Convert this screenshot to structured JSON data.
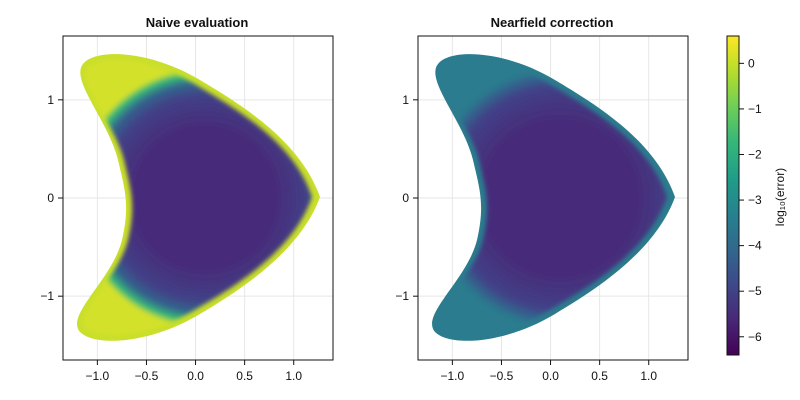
{
  "chart_data": [
    {
      "type": "heatmap",
      "title": "Naive evaluation",
      "xlim": [
        -1.35,
        1.4
      ],
      "ylim": [
        -1.65,
        1.65
      ],
      "x_ticks": [
        -1.0,
        -0.5,
        0.0,
        0.5,
        1.0
      ],
      "x_tick_labels": [
        "−1.0",
        "−0.5",
        "0.0",
        "0.5",
        "1.0"
      ],
      "y_ticks": [
        -1,
        0,
        1
      ],
      "y_tick_labels": [
        "−1",
        "0",
        "1"
      ],
      "grid": true,
      "interior_log10_error_approx": -5.8,
      "boundary_log10_error_approx": 0.2
    },
    {
      "type": "heatmap",
      "title": "Nearfield correction",
      "xlim": [
        -1.35,
        1.4
      ],
      "ylim": [
        -1.65,
        1.65
      ],
      "x_ticks": [
        -1.0,
        -0.5,
        0.0,
        0.5,
        1.0
      ],
      "x_tick_labels": [
        "−1.0",
        "−0.5",
        "0.0",
        "0.5",
        "1.0"
      ],
      "y_ticks": [
        -1,
        0,
        1
      ],
      "y_tick_labels": [
        "−1",
        "0",
        "1"
      ],
      "grid": true,
      "interior_log10_error_approx": -5.8,
      "boundary_log10_error_approx": -3.0
    }
  ],
  "colorbar": {
    "label": "log₁₀(error)",
    "range": [
      -6.4,
      0.6
    ],
    "ticks": [
      0,
      -1,
      -2,
      -3,
      -4,
      -5,
      -6
    ],
    "tick_labels": [
      "0",
      "−1",
      "−2",
      "−3",
      "−4",
      "−5",
      "−6"
    ],
    "colormap": "viridis",
    "colors": [
      "#440154",
      "#482878",
      "#3e4989",
      "#31688e",
      "#26828e",
      "#1f9e89",
      "#35b779",
      "#6ece58",
      "#b5de2b",
      "#fde725"
    ]
  }
}
